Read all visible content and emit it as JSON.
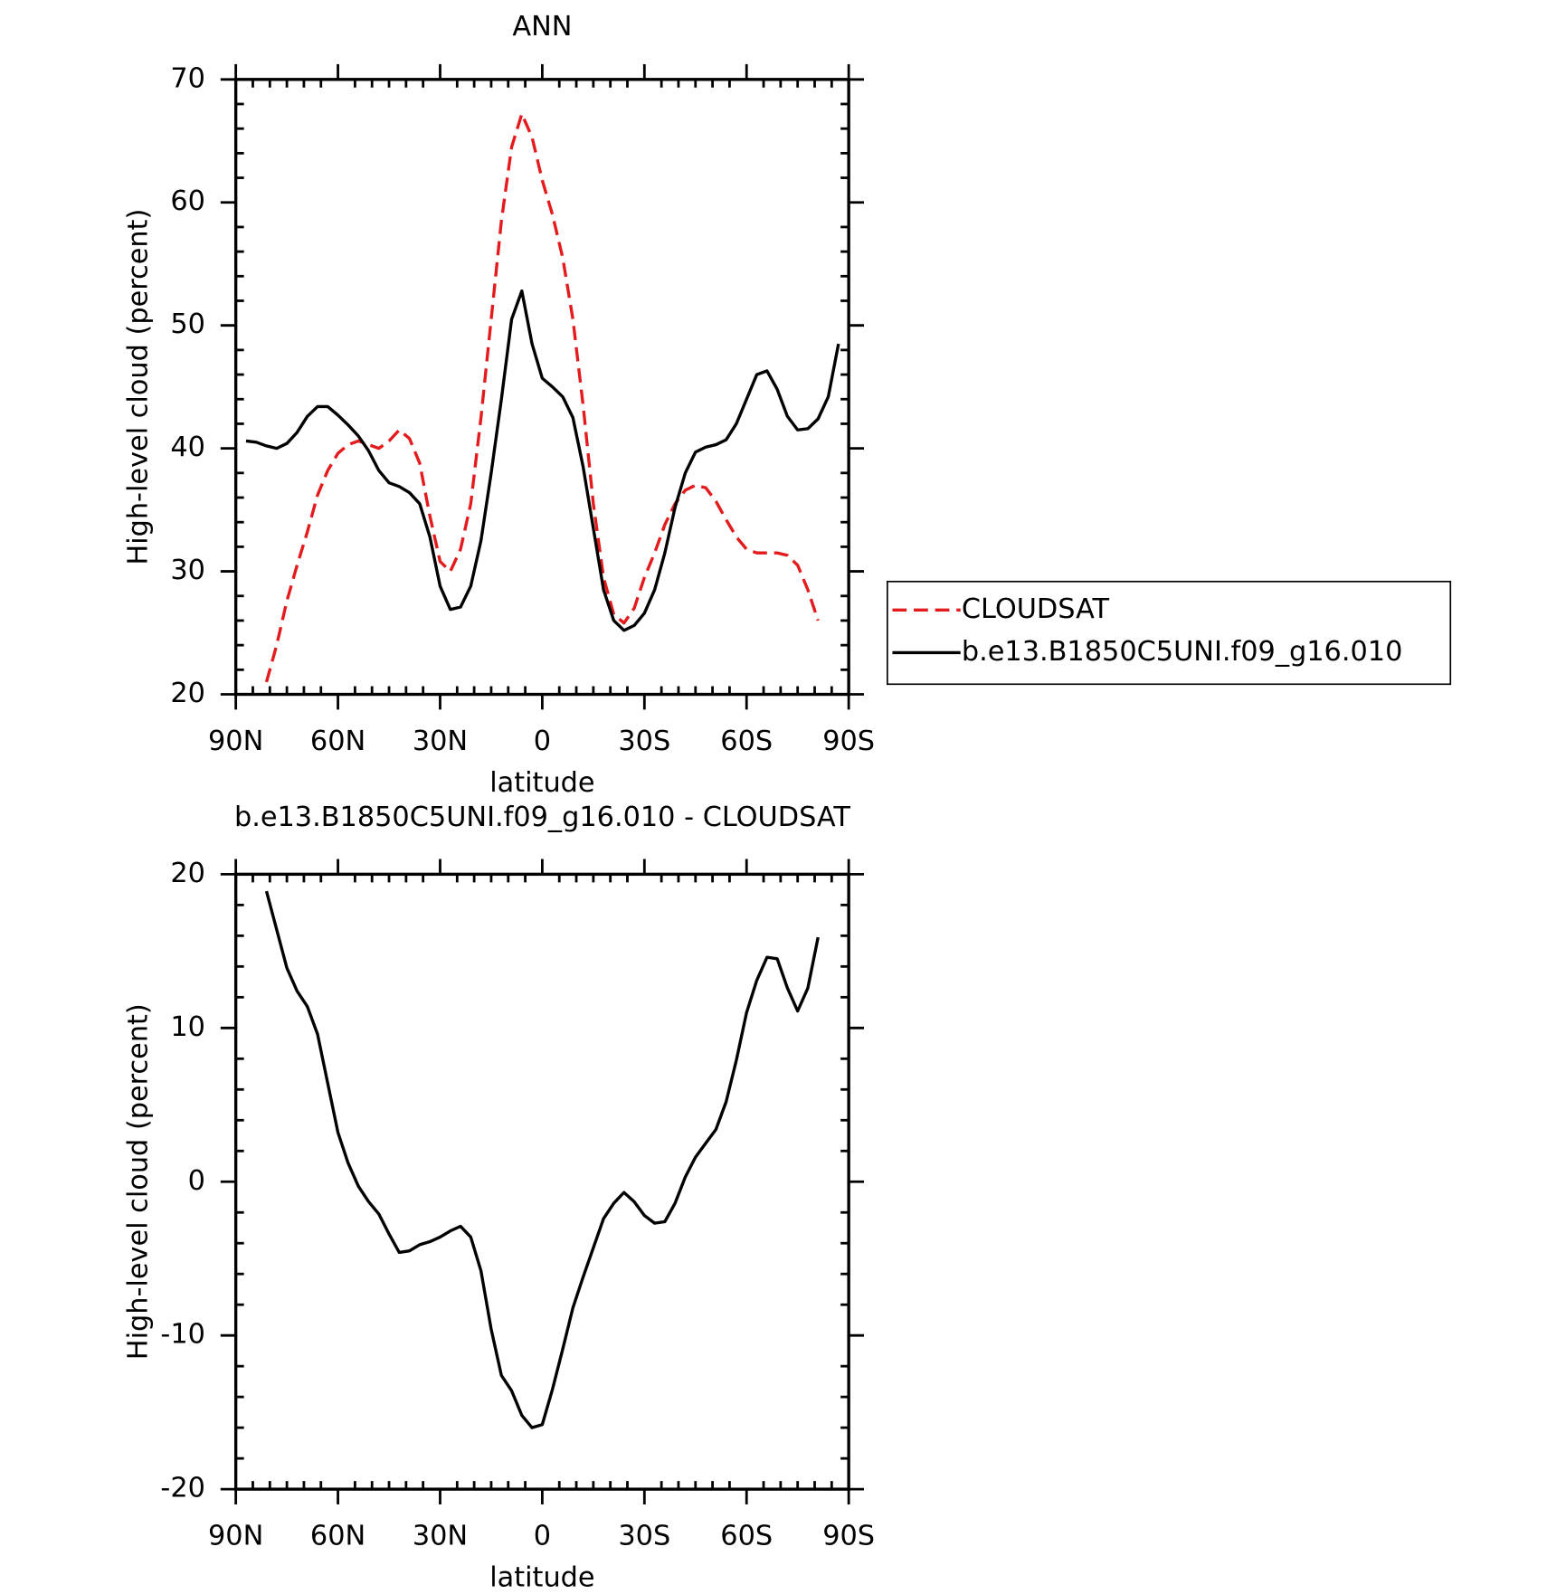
{
  "chart_data": [
    {
      "type": "line",
      "title": "ANN",
      "xlabel": "latitude",
      "ylabel": "High-level cloud (percent)",
      "x": [
        87,
        84,
        81,
        78,
        75,
        72,
        69,
        66,
        63,
        60,
        57,
        54,
        51,
        48,
        45,
        42,
        39,
        36,
        33,
        30,
        27,
        24,
        21,
        18,
        15,
        12,
        9,
        6,
        3,
        0,
        -3,
        -6,
        -9,
        -12,
        -15,
        -18,
        -21,
        -24,
        -27,
        -30,
        -33,
        -36,
        -39,
        -42,
        -45,
        -48,
        -51,
        -54,
        -57,
        -60,
        -63,
        -66,
        -69,
        -72,
        -75,
        -78,
        -81,
        -84,
        -87
      ],
      "series": [
        {
          "name": "CLOUDSAT",
          "color": "#e41a1c",
          "line_style": "dashed",
          "values": [
            null,
            null,
            21.0,
            24,
            27.6,
            30.5,
            33.2,
            36.2,
            38.2,
            39.6,
            40.3,
            40.6,
            40.3,
            40.0,
            40.6,
            41.5,
            40.8,
            38.8,
            34.5,
            30.8,
            30.0,
            31.8,
            35.5,
            42.5,
            50.5,
            58.5,
            64.5,
            67.2,
            65.3,
            61.8,
            59,
            55.5,
            50.5,
            43.5,
            35.5,
            29.5,
            26.5,
            25.8,
            27.0,
            29.5,
            31.5,
            33.8,
            35.5,
            36.6,
            37.0,
            36.8,
            35.7,
            34.2,
            32.8,
            31.8,
            31.5,
            31.5,
            31.5,
            31.3,
            30.5,
            28.5,
            26.0,
            null,
            null
          ]
        },
        {
          "name": "b.e13.B1850C5UNI.f09_g16.010",
          "color": "#000000",
          "line_style": "solid",
          "values": [
            40.6,
            40.5,
            40.2,
            40.0,
            40.4,
            41.3,
            42.6,
            43.4,
            43.4,
            42.7,
            41.9,
            41.0,
            39.8,
            38.2,
            37.2,
            36.9,
            36.4,
            35.5,
            32.8,
            28.8,
            26.9,
            27.1,
            28.8,
            32.5,
            38,
            44,
            50.5,
            52.8,
            48.5,
            45.7,
            45.0,
            44.2,
            42.5,
            38.5,
            33.5,
            28.5,
            26.0,
            25.2,
            25.6,
            26.6,
            28.5,
            31.5,
            35.2,
            38.0,
            39.7,
            40.1,
            40.3,
            40.7,
            42,
            44,
            46.0,
            46.3,
            44.8,
            42.6,
            41.5,
            41.6,
            42.4,
            44.2,
            48.5
          ]
        }
      ],
      "xlim": [
        90,
        -90
      ],
      "xticks": [
        {
          "value": 90,
          "label": "90N"
        },
        {
          "value": 60,
          "label": "60N"
        },
        {
          "value": 30,
          "label": "30N"
        },
        0,
        {
          "value": -30,
          "label": "30S"
        },
        {
          "value": -60,
          "label": "60S"
        },
        {
          "value": -90,
          "label": "90S"
        }
      ],
      "xminorticks": [
        85,
        80,
        75,
        70,
        65,
        55,
        50,
        45,
        40,
        35,
        25,
        20,
        15,
        10,
        5,
        -5,
        -10,
        -15,
        -20,
        -25,
        -35,
        -40,
        -45,
        -50,
        -55,
        -65,
        -70,
        -75,
        -80,
        -85
      ],
      "ylim": [
        20,
        70
      ],
      "yticks": [
        20,
        30,
        40,
        50,
        60,
        70
      ],
      "yminorticks": [
        22,
        24,
        26,
        28,
        32,
        34,
        36,
        38,
        42,
        44,
        46,
        48,
        52,
        54,
        56,
        58,
        62,
        64,
        66,
        68
      ],
      "legend": "right"
    },
    {
      "type": "line",
      "title": "b.e13.B1850C5UNI.f09_g16.010 - CLOUDSAT",
      "xlabel": "latitude",
      "ylabel": "High-level cloud (percent)",
      "x": [
        81,
        78,
        75,
        72,
        69,
        66,
        63,
        60,
        57,
        54,
        51,
        48,
        45,
        42,
        39,
        36,
        33,
        30,
        27,
        24,
        21,
        18,
        15,
        12,
        9,
        6,
        3,
        0,
        -3,
        -6,
        -9,
        -12,
        -15,
        -18,
        -21,
        -24,
        -27,
        -30,
        -33,
        -36,
        -39,
        -42,
        -45,
        -48,
        -51,
        -54,
        -57,
        -60,
        -63,
        -66,
        -69,
        -72,
        -75,
        -78,
        -81
      ],
      "series": [
        {
          "color": "#000000",
          "line_style": "solid",
          "values": [
            18.9,
            16.4,
            13.9,
            12.4,
            11.4,
            9.6,
            6.4,
            3.2,
            1.2,
            -0.3,
            -1.3,
            -2.1,
            -3.4,
            -4.6,
            -4.5,
            -4.1,
            -3.9,
            -3.6,
            -3.2,
            -2.9,
            -3.6,
            -5.8,
            -9.6,
            -12.6,
            -13.6,
            -15.2,
            -16.0,
            -15.8,
            -13.5,
            -10.9,
            -8.2,
            -6.2,
            -4.3,
            -2.4,
            -1.4,
            -0.7,
            -1.3,
            -2.2,
            -2.7,
            -2.6,
            -1.4,
            0.3,
            1.6,
            2.5,
            3.4,
            5.2,
            7.9,
            11.0,
            13.1,
            14.6,
            14.5,
            12.6,
            11.1,
            12.6,
            15.9
          ]
        }
      ],
      "xlim": [
        90,
        -90
      ],
      "xticks": [
        {
          "value": 90,
          "label": "90N"
        },
        {
          "value": 60,
          "label": "60N"
        },
        {
          "value": 30,
          "label": "30N"
        },
        0,
        {
          "value": -30,
          "label": "30S"
        },
        {
          "value": -60,
          "label": "60S"
        },
        {
          "value": -90,
          "label": "90S"
        }
      ],
      "xminorticks": [
        85,
        80,
        75,
        70,
        65,
        55,
        50,
        45,
        40,
        35,
        25,
        20,
        15,
        10,
        5,
        -5,
        -10,
        -15,
        -20,
        -25,
        -35,
        -40,
        -45,
        -50,
        -55,
        -65,
        -70,
        -75,
        -80,
        -85
      ],
      "ylim": [
        -20,
        20
      ],
      "yticks": [
        -20,
        -10,
        0,
        10,
        20
      ],
      "yminorticks": [
        -18,
        -16,
        -14,
        -12,
        -8,
        -6,
        -4,
        -2,
        2,
        4,
        6,
        8,
        12,
        14,
        16,
        18
      ]
    }
  ]
}
